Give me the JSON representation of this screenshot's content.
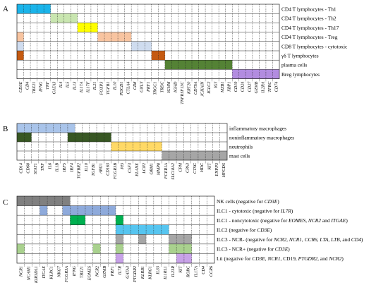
{
  "colors": {
    "blue": "#1ab4ea",
    "lightgreen": "#c9e6b0",
    "yellow": "#ffff00",
    "peach": "#f8c4a0",
    "lightblue": "#cfdcef",
    "orange": "#c55a11",
    "darkgreen": "#548235",
    "purple": "#b28ce0",
    "lightblue2": "#a9c4ea",
    "darkgreen2": "#385723",
    "gold": "#ffd966",
    "gray": "#a6a6a6",
    "darkgray": "#808080",
    "steel": "#8eaadb",
    "green": "#00b050",
    "sky": "#56c5f0",
    "softgreen": "#a9d18e",
    "lavender": "#c8a2e8"
  },
  "panels": [
    {
      "label": "A",
      "rows": [
        {
          "text": "CD4 T lymphocytes - Th1"
        },
        {
          "text": "CD4 T lymphocytes - Th2"
        },
        {
          "text": "CD4 T lymphocytes - Th17"
        },
        {
          "text": "CD4 T lymphocytes - Treg"
        },
        {
          "text": "CD8 T lymphocytes - cytotoxic"
        },
        {
          "text": "γδ T lymphocytes"
        },
        {
          "text": "plasma cells"
        },
        {
          "text": "Breg lymphocytes"
        }
      ],
      "columns": [
        "CD3E",
        "CD4",
        "TBX21",
        "IFNG",
        "TNF",
        "GATA3",
        "IL4",
        "IL5",
        "IL13",
        "IL17A",
        "IL17F",
        "IL21",
        "FOXP3",
        "TGFB1",
        "IL10",
        "PDCD1",
        "CTLA4",
        "CD8",
        "GNLY",
        "PRF1",
        "TRGC1",
        "TRDC",
        "IGHM",
        "IGHD",
        "TNFRSF13C",
        "KRT20",
        "CD79A",
        "JCHAIN",
        "IGLC2",
        "IGJ",
        "MZB1",
        "XBP1",
        "CD19",
        "CD24",
        "CD27",
        "GZMB",
        "IL2RA",
        "TFRC",
        "CD74"
      ],
      "blocks": [
        {
          "row": 0,
          "start": 0,
          "end": 5,
          "color": "blue"
        },
        {
          "row": 1,
          "start": 5,
          "end": 9,
          "color": "lightgreen"
        },
        {
          "row": 2,
          "start": 9,
          "end": 12,
          "color": "yellow"
        },
        {
          "row": 3,
          "start": 0,
          "end": 1,
          "color": "peach"
        },
        {
          "row": 3,
          "start": 12,
          "end": 17,
          "color": "peach"
        },
        {
          "row": 4,
          "start": 0,
          "end": 1,
          "color": "lightblue"
        },
        {
          "row": 4,
          "start": 17,
          "end": 20,
          "color": "lightblue"
        },
        {
          "row": 5,
          "start": 0,
          "end": 1,
          "color": "orange"
        },
        {
          "row": 5,
          "start": 20,
          "end": 22,
          "color": "orange"
        },
        {
          "row": 6,
          "start": 22,
          "end": 32,
          "color": "darkgreen"
        },
        {
          "row": 7,
          "start": 32,
          "end": 39,
          "color": "purple"
        }
      ]
    },
    {
      "label": "B",
      "rows": [
        {
          "text": "inflammatory macrophages"
        },
        {
          "text": "noninflammatory macrophages"
        },
        {
          "text": "neutrophils"
        },
        {
          "text": "mast cells"
        }
      ],
      "columns": [
        "CD14",
        "CD68",
        "STAT1",
        "TNF",
        "IL6",
        "IL1B",
        "IRF5",
        "IRF4",
        "TGFBR2",
        "IL10",
        "TGFB1",
        "ARG1",
        "CD163",
        "FCGR3B",
        "PI3",
        "CSF3",
        "ELANE",
        "LCN2",
        "ORM1",
        "MMP8",
        "FCER1A",
        "SLC18A2",
        "CPM",
        "CPA3",
        "CTSG",
        "HDC",
        "KIT",
        "ENPP3",
        "HPGDS"
      ],
      "blocks": [
        {
          "row": 0,
          "start": 0,
          "end": 8,
          "color": "lightblue2"
        },
        {
          "row": 1,
          "start": 0,
          "end": 2,
          "color": "darkgreen2"
        },
        {
          "row": 1,
          "start": 7,
          "end": 13,
          "color": "darkgreen2"
        },
        {
          "row": 2,
          "start": 13,
          "end": 20,
          "color": "gold"
        },
        {
          "row": 3,
          "start": 20,
          "end": 29,
          "color": "gray"
        }
      ]
    },
    {
      "label": "C",
      "rows": [
        {
          "parts": [
            {
              "t": "NK cells (negative for "
            },
            {
              "t": "CD3E",
              "i": true
            },
            {
              "t": ")"
            }
          ]
        },
        {
          "parts": [
            {
              "t": "ILC1 - cytotoxic (negative for "
            },
            {
              "t": "IL7R",
              "i": true
            },
            {
              "t": ")"
            }
          ]
        },
        {
          "parts": [
            {
              "t": "ILC1 - noncytotoxic (negative for "
            },
            {
              "t": "EOMES, NCR2",
              "i": true
            },
            {
              "t": " and "
            },
            {
              "t": "ITGAE",
              "i": true
            },
            {
              "t": ")"
            }
          ]
        },
        {
          "parts": [
            {
              "t": "ILC2 (negative for "
            },
            {
              "t": "CD3E",
              "i": true
            },
            {
              "t": ")"
            }
          ]
        },
        {
          "parts": [
            {
              "t": "ILC3 - NCR- (negative for "
            },
            {
              "t": "NCR2, NCR1, CCR6, LTA, LTB,",
              "i": true
            },
            {
              "t": " and "
            },
            {
              "t": "CD4",
              "i": true
            },
            {
              "t": ")"
            }
          ]
        },
        {
          "parts": [
            {
              "t": "ILC3 - NCR+ (negative for "
            },
            {
              "t": "CD3E",
              "i": true
            },
            {
              "t": ")"
            }
          ]
        },
        {
          "parts": [
            {
              "t": "Lti (negative for "
            },
            {
              "t": "CD3E, NCR1",
              "i": true
            },
            {
              "t": ", CD19, "
            },
            {
              "t": "PTGDR2",
              "i": true
            },
            {
              "t": ", and "
            },
            {
              "t": "NCR2",
              "i": true
            },
            {
              "t": ")"
            }
          ]
        }
      ],
      "columns": [
        "NCR1",
        "NCAM1",
        "KIR3DL1",
        "ITGAE",
        "KLRC1",
        "NKG7",
        "FCGR3A",
        "IFNG",
        "TBX21",
        "EOMES",
        "NCR2",
        "GZMB",
        "PRF1",
        "IL7R",
        "GATA3",
        "PTGDR2",
        "KLRB1",
        "KLRG1",
        "IL33",
        "IL1RL1",
        "IL23R",
        "KIT",
        "RORC",
        "IL17A",
        "CD4",
        "CCR6"
      ],
      "blocks": [
        {
          "row": 0,
          "start": 0,
          "end": 7,
          "color": "darkgray"
        },
        {
          "row": 1,
          "start": 3,
          "end": 4,
          "color": "steel"
        },
        {
          "row": 1,
          "start": 6,
          "end": 13,
          "color": "steel"
        },
        {
          "row": 2,
          "start": 7,
          "end": 9,
          "color": "green"
        },
        {
          "row": 2,
          "start": 13,
          "end": 14,
          "color": "green"
        },
        {
          "row": 3,
          "start": 13,
          "end": 20,
          "color": "sky"
        },
        {
          "row": 4,
          "start": 13,
          "end": 14,
          "color": "gray"
        },
        {
          "row": 4,
          "start": 16,
          "end": 17,
          "color": "gray"
        },
        {
          "row": 4,
          "start": 20,
          "end": 23,
          "color": "gray"
        },
        {
          "row": 5,
          "start": 0,
          "end": 1,
          "color": "softgreen"
        },
        {
          "row": 5,
          "start": 10,
          "end": 11,
          "color": "softgreen"
        },
        {
          "row": 5,
          "start": 13,
          "end": 14,
          "color": "softgreen"
        },
        {
          "row": 5,
          "start": 20,
          "end": 23,
          "color": "softgreen"
        },
        {
          "row": 6,
          "start": 13,
          "end": 14,
          "color": "lavender"
        },
        {
          "row": 6,
          "start": 21,
          "end": 23,
          "color": "lavender"
        }
      ]
    }
  ]
}
